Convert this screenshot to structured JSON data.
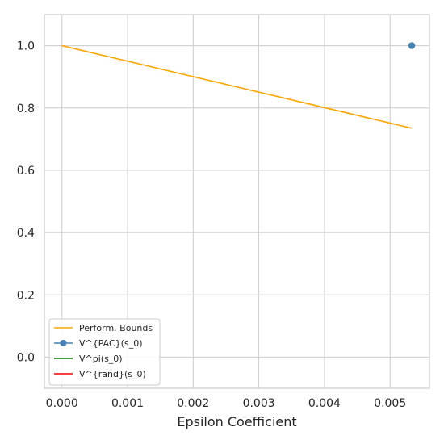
{
  "chart_data": {
    "type": "line",
    "title": "",
    "xlabel": "Epsilon Coefficient",
    "ylabel": "",
    "xlim": [
      -0.000267,
      0.0056
    ],
    "ylim": [
      -0.1,
      1.1
    ],
    "grid": true,
    "xticks": [
      0.0,
      0.001,
      0.002,
      0.003,
      0.004,
      0.005
    ],
    "xtick_labels": [
      "0.000",
      "0.001",
      "0.002",
      "0.003",
      "0.004",
      "0.005"
    ],
    "yticks": [
      0.0,
      0.2,
      0.4,
      0.6,
      0.8,
      1.0
    ],
    "ytick_labels": [
      "0.0",
      "0.2",
      "0.4",
      "0.6",
      "0.8",
      "1.0"
    ],
    "legend_position": "lower-left",
    "series": [
      {
        "name": "Perform. Bounds",
        "color": "#ffa500",
        "marker": false,
        "x": [
          0.0,
          0.00533
        ],
        "y": [
          1.0,
          0.735
        ]
      },
      {
        "name": "V^{PAC}(s_0)",
        "color": "#4682b4",
        "marker": true,
        "x": [
          0.00533
        ],
        "y": [
          1.0
        ]
      },
      {
        "name": "V^pi(s_0)",
        "color": "#008000",
        "marker": false,
        "x": [],
        "y": []
      },
      {
        "name": "V^{rand}(s_0)",
        "color": "#ff0000",
        "marker": false,
        "x": [],
        "y": []
      }
    ]
  }
}
